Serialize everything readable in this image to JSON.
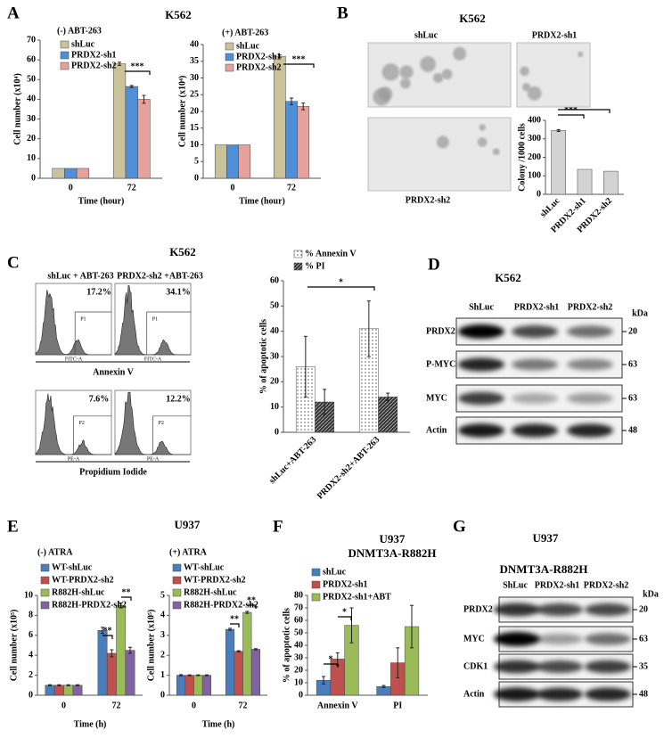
{
  "panel_labels": [
    "A",
    "B",
    "C",
    "D",
    "E",
    "F",
    "G"
  ],
  "headers": {
    "A": "K562",
    "E": "U937"
  },
  "chart_data": [
    {
      "type": "bar",
      "legend_title": "(-) ABT-263",
      "categories": [
        "0",
        "72"
      ],
      "series": [
        {
          "name": "shLuc",
          "color": "#c9c29b",
          "values": [
            5,
            58
          ],
          "errors": [
            null,
            0.8
          ]
        },
        {
          "name": "PRDX2-sh1",
          "color": "#4f8fd8",
          "values": [
            5,
            46.5
          ],
          "errors": [
            null,
            0.5
          ]
        },
        {
          "name": "PRDX2-sh2",
          "color": "#e6a19c",
          "values": [
            5,
            40
          ],
          "errors": [
            null,
            2
          ]
        }
      ],
      "ylim": [
        0,
        70
      ],
      "yticks": [
        0,
        10,
        20,
        30,
        40,
        50,
        60,
        70
      ],
      "y_label": "Cell number (x10⁴)",
      "x_label": "Time (hour)",
      "annotations": [
        "***"
      ]
    },
    {
      "type": "bar",
      "legend_title": "(+) ABT-263",
      "categories": [
        "0",
        "72"
      ],
      "series": [
        {
          "name": "shLuc",
          "color": "#c9c29b",
          "values": [
            10,
            36.5
          ],
          "errors": [
            null,
            0.4
          ]
        },
        {
          "name": "PRDX2-sh1",
          "color": "#4f8fd8",
          "values": [
            10,
            23
          ],
          "errors": [
            null,
            1
          ]
        },
        {
          "name": "PRDX2-sh2",
          "color": "#e6a19c",
          "values": [
            10,
            21.5
          ],
          "errors": [
            null,
            1
          ]
        }
      ],
      "ylim": [
        0,
        40
      ],
      "yticks": [
        0,
        5,
        10,
        15,
        20,
        25,
        30,
        35,
        40
      ],
      "y_label": "Cell number (x10⁴)",
      "x_label": "Time (hour)",
      "annotations": [
        "***"
      ]
    },
    {
      "type": "bar",
      "categories": [
        "shLuc",
        "PRDX2-sh1",
        "PRDX2-sh2"
      ],
      "values": [
        345,
        135,
        125
      ],
      "errors": [
        5,
        null,
        null
      ],
      "color": "#d3d3d3",
      "ylim": [
        0,
        400
      ],
      "yticks": [
        0,
        100,
        200,
        300,
        400
      ],
      "y_label": "Colony /1000 cells",
      "annotations": [
        "***",
        "***"
      ]
    },
    {
      "type": "bar",
      "categories": [
        "shLuc+ABT-263",
        "PRDX2-sh2+ABT-263"
      ],
      "series": [
        {
          "name": "% Annexin V",
          "color": "#ffffff",
          "pattern": "dots",
          "values": [
            26,
            41
          ],
          "errors": [
            12,
            11
          ]
        },
        {
          "name": "% PI",
          "color": "#333333",
          "pattern": "hatch",
          "values": [
            12,
            14
          ],
          "errors": [
            5,
            1.5
          ]
        }
      ],
      "ylim": [
        0,
        60
      ],
      "yticks": [
        0,
        10,
        20,
        30,
        40,
        50,
        60
      ],
      "y_label": "% of apoptotic cells",
      "annotations": [
        "*"
      ]
    },
    {
      "type": "bar",
      "legend_title": "(-) ATRA",
      "categories": [
        "0",
        "72"
      ],
      "series": [
        {
          "name": "WT-shLuc",
          "color": "#4a7ebb",
          "values": [
            1,
            6.5
          ],
          "errors": [
            0.05,
            0.3
          ]
        },
        {
          "name": "WT-PRDX2-sh2",
          "color": "#c0504d",
          "values": [
            1,
            4.2
          ],
          "errors": [
            0.05,
            0.35
          ]
        },
        {
          "name": "R882H-shLuc",
          "color": "#9bbb59",
          "values": [
            1,
            9
          ],
          "errors": [
            0.05,
            0.25
          ]
        },
        {
          "name": "R882H-PRDX2-sh2",
          "color": "#8064a2",
          "values": [
            1,
            4.5
          ],
          "errors": [
            0.05,
            0.3
          ]
        }
      ],
      "ylim": [
        0,
        10
      ],
      "yticks": [
        0,
        2,
        4,
        6,
        8,
        10
      ],
      "y_label": "Cell number (x10⁵)",
      "x_label": "Time (h)",
      "annotations": [
        "**",
        "**"
      ]
    },
    {
      "type": "bar",
      "legend_title": "(+) ATRA",
      "categories": [
        "0",
        "72"
      ],
      "series": [
        {
          "name": "WT-shLuc",
          "color": "#4a7ebb",
          "values": [
            1,
            3.3
          ],
          "errors": [
            0.03,
            0.05
          ]
        },
        {
          "name": "WT-PRDX2-sh2",
          "color": "#c0504d",
          "values": [
            1,
            2.2
          ],
          "errors": [
            0.02,
            0.03
          ]
        },
        {
          "name": "R882H-shLuc",
          "color": "#9bbb59",
          "values": [
            1,
            4.15
          ],
          "errors": [
            0.02,
            0.05
          ]
        },
        {
          "name": "R882H-PRDX2-sh2",
          "color": "#8064a2",
          "values": [
            1,
            2.3
          ],
          "errors": [
            0.02,
            0.03
          ]
        }
      ],
      "ylim": [
        0,
        5
      ],
      "yticks": [
        0,
        1,
        2,
        3,
        4,
        5
      ],
      "y_label": "Cell number (x10⁵)",
      "x_label": "Time (h)",
      "annotations": [
        "**",
        "**"
      ]
    },
    {
      "type": "bar",
      "title": "U937",
      "subtitle": "DNMT3A-R882H",
      "categories": [
        "Annexin V",
        "PI"
      ],
      "series": [
        {
          "name": "shLuc",
          "color": "#4a7ebb",
          "values": [
            12,
            7
          ],
          "errors": [
            3,
            0.8
          ]
        },
        {
          "name": "PRDX2-sh1",
          "color": "#c0504d",
          "values": [
            29,
            26
          ],
          "errors": [
            5,
            12
          ]
        },
        {
          "name": "PRDX2-sh1+ABT",
          "color": "#9bbb59",
          "values": [
            56,
            55
          ],
          "errors": [
            14,
            17
          ]
        }
      ],
      "ylim": [
        0,
        80
      ],
      "yticks": [
        0,
        10,
        20,
        30,
        40,
        50,
        60,
        70,
        80
      ],
      "y_label": "% of apoptotic cells",
      "annotations": [
        "*",
        "*"
      ]
    }
  ],
  "colony": {
    "title": "K562",
    "images": [
      "shLuc",
      "PRDX2-sh1",
      "PRDX2-sh2"
    ]
  },
  "flow": {
    "title": "K562",
    "columns": [
      "shLuc + ABT-263",
      "PRDX2-sh2 +ABT-263"
    ],
    "top_percent": [
      "17.2%",
      "34.1%"
    ],
    "bottom_percent": [
      "7.6%",
      "12.2%"
    ],
    "gates": [
      "P1",
      "P2"
    ],
    "channels": [
      "FITC-A",
      "PE-A"
    ],
    "top_axis": "Annexin V",
    "bottom_axis": "Propidium Iodide"
  },
  "blots": [
    {
      "title": "K562",
      "lanes": [
        "ShLuc",
        "PRDX2-sh1",
        "PRDX2-sh2"
      ],
      "unit": "kDa",
      "rows": [
        {
          "label": "PRDX2",
          "kda": 20
        },
        {
          "label": "P-MYC",
          "kda": 63
        },
        {
          "label": "MYC",
          "kda": 63
        },
        {
          "label": "Actin",
          "kda": 48
        }
      ]
    },
    {
      "title": "U937",
      "subtitle": "DNMT3A-R882H",
      "lanes": [
        "ShLuc",
        "PRDX2-sh1",
        "PRDX2-sh2"
      ],
      "unit": "kDa",
      "rows": [
        {
          "label": "PRDX2",
          "kda": 20
        },
        {
          "label": "MYC",
          "kda": 63
        },
        {
          "label": "CDK1",
          "kda": 35
        },
        {
          "label": "Actin",
          "kda": 48
        }
      ]
    }
  ]
}
